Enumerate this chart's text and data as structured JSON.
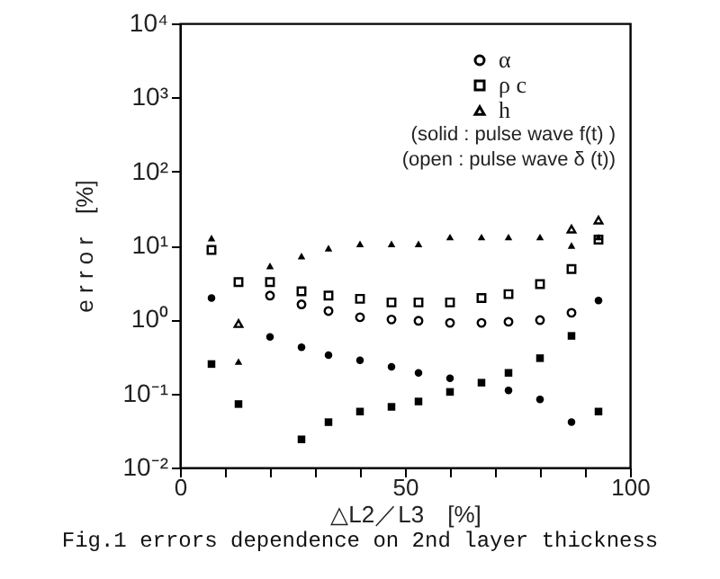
{
  "chart_data": {
    "type": "scatter",
    "title": "Fig.1 errors dependence on 2nd layer thickness",
    "xlabel": "△L2／L3　[%]",
    "ylabel": "e r r o r　[%]",
    "x": [
      7,
      13,
      20,
      27,
      33,
      40,
      47,
      53,
      60,
      67,
      73,
      80,
      87,
      93
    ],
    "series": [
      {
        "name": "α",
        "marker": "circle",
        "color": "#000000",
        "values": [
          null,
          null,
          2.1,
          1.6,
          1.3,
          1.07,
          1.0,
          0.96,
          0.9,
          0.9,
          0.93,
          0.98,
          1.23,
          null
        ]
      },
      {
        "name": "ρ c",
        "marker": "square",
        "color": "#000000",
        "values": [
          8.7,
          3.2,
          3.2,
          2.4,
          2.1,
          1.9,
          1.7,
          1.7,
          1.7,
          1.95,
          2.2,
          3.0,
          4.8,
          12
        ]
      },
      {
        "name": "h",
        "marker": "triangle",
        "color": "#000000",
        "values": [
          null,
          0.88,
          null,
          null,
          null,
          null,
          null,
          null,
          null,
          null,
          null,
          null,
          16.6,
          22
        ]
      },
      {
        "marker": "circle",
        "color": "#000000",
        "values": [
          1.95,
          null,
          0.58,
          0.42,
          0.33,
          0.28,
          0.23,
          0.19,
          0.16,
          null,
          0.11,
          0.083,
          0.041,
          1.8
        ]
      },
      {
        "marker": "square",
        "color": "#000000",
        "values": [
          0.25,
          0.072,
          null,
          0.024,
          0.041,
          0.057,
          0.066,
          0.078,
          0.105,
          0.14,
          0.19,
          0.3,
          0.6,
          0.057
        ]
      },
      {
        "marker": "triangle",
        "color": "#000000",
        "values": [
          12.6,
          0.27,
          5.3,
          7.2,
          9.2,
          10.5,
          10.5,
          10.5,
          13,
          13,
          13,
          13,
          10,
          13
        ]
      }
    ],
    "log": "y",
    "grid": false,
    "legend": "top right",
    "xlim": [
      0,
      100
    ],
    "xticks": [
      0,
      {
        "value": 10,
        "label": null
      },
      {
        "value": 20,
        "label": null
      },
      {
        "value": 30,
        "label": null
      },
      {
        "value": 40,
        "label": null
      },
      50,
      {
        "value": 60,
        "label": null
      },
      {
        "value": 70,
        "label": null
      },
      {
        "value": 80,
        "label": null
      },
      {
        "value": 90,
        "label": null
      },
      100
    ],
    "ylim": [
      0.01,
      10000
    ],
    "yticks": [
      {
        "value": 0.01,
        "label": "10⁻²"
      },
      {
        "value": 0.1,
        "label": "10⁻¹"
      },
      {
        "value": 1,
        "label": "10⁰"
      },
      {
        "value": 10,
        "label": "10¹"
      },
      {
        "value": 100,
        "label": "10²"
      },
      {
        "value": 1000,
        "label": "10³"
      },
      {
        "value": 10000,
        "label": "10⁴"
      }
    ],
    "annotations": [
      "(solid : pulse wave  f(t)  )",
      "(open : pulse wave  δ (t))"
    ]
  }
}
